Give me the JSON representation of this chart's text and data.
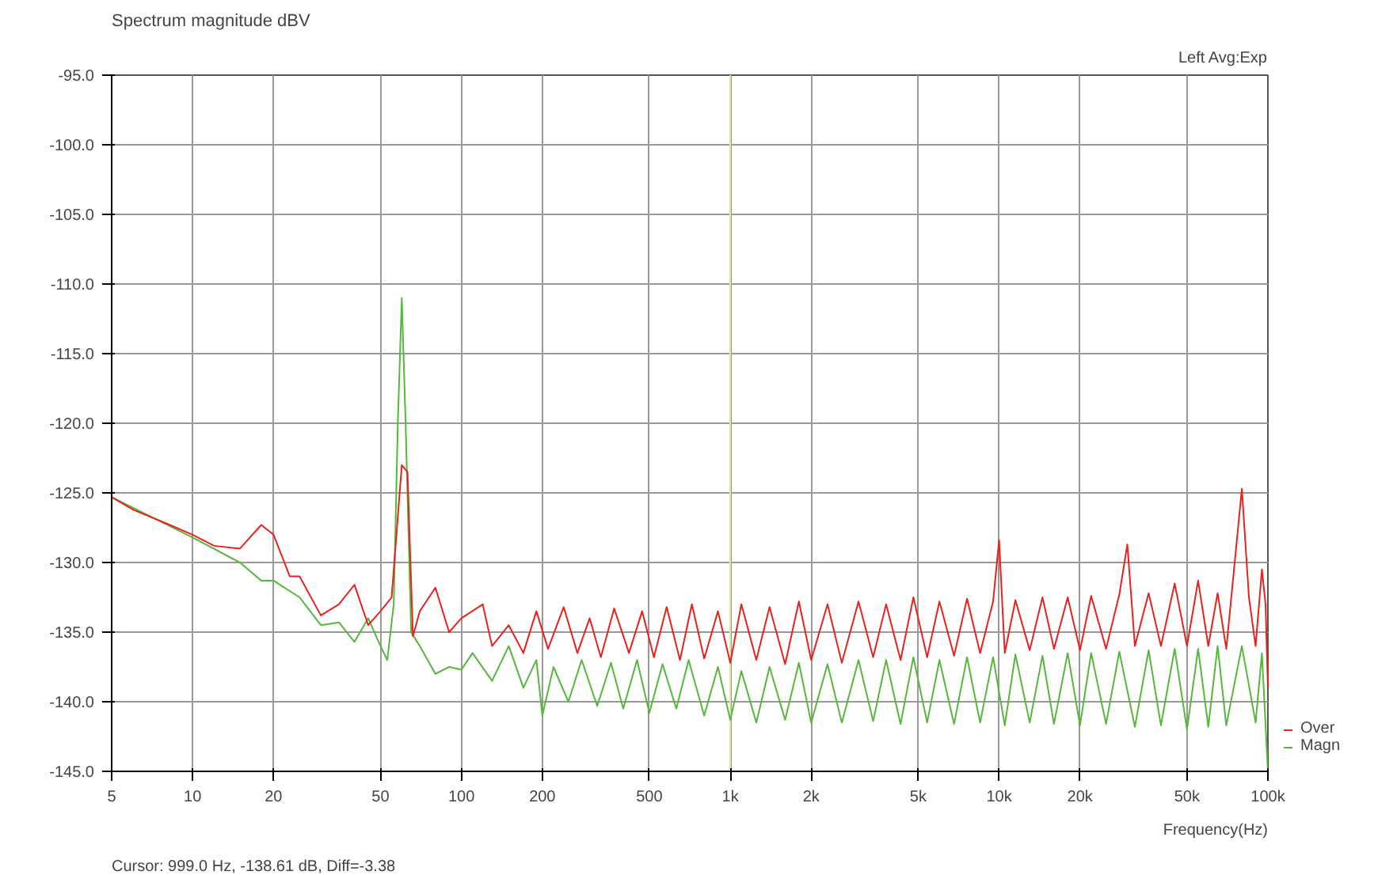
{
  "chart_data": {
    "type": "line",
    "title": "Spectrum magnitude dBV",
    "xlabel": "Frequency(Hz)",
    "annotations": [
      "Left Avg:Exp",
      "Cursor:  999.0 Hz, -138.61 dB,  Diff=-3.38"
    ],
    "log": "x",
    "grid": true,
    "legend": "bottom right",
    "xlim": [
      5,
      100000
    ],
    "ylim": [
      -145,
      -95
    ],
    "xticks": [
      5,
      10,
      20,
      50,
      100,
      200,
      500,
      {
        "value": 1000,
        "label": "1k"
      },
      {
        "value": 2000,
        "label": "2k"
      },
      {
        "value": 5000,
        "label": "5k"
      },
      {
        "value": 10000,
        "label": "10k"
      },
      {
        "value": 20000,
        "label": "20k"
      },
      {
        "value": 50000,
        "label": "50k"
      },
      {
        "value": 100000,
        "label": "100k"
      }
    ],
    "yticks": [
      {
        "value": -145,
        "label": "-145.0"
      },
      {
        "value": -140,
        "label": "-140.0"
      },
      {
        "value": -135,
        "label": "-135.0"
      },
      {
        "value": -130,
        "label": "-130.0"
      },
      {
        "value": -125,
        "label": "-125.0"
      },
      {
        "value": -120,
        "label": "-120.0"
      },
      {
        "value": -115,
        "label": "-115.0"
      },
      {
        "value": -110,
        "label": "-110.0"
      },
      {
        "value": -105,
        "label": "-105.0"
      },
      {
        "value": -100,
        "label": "-100.0"
      },
      {
        "value": -95,
        "label": "-95.0"
      }
    ],
    "ref_lines": [
      {
        "axis": "x",
        "value": 999,
        "label": null,
        "color": "#e6e89a"
      }
    ],
    "series": [
      {
        "name": "Magn",
        "color": "#55b83c",
        "x": [
          5,
          10,
          15,
          18,
          20,
          25,
          30,
          35,
          40,
          45,
          50,
          53,
          56,
          58,
          60,
          62,
          65,
          70,
          80,
          90,
          100,
          110,
          130,
          150,
          170,
          190,
          200,
          220,
          250,
          280,
          320,
          360,
          400,
          450,
          500,
          560,
          630,
          700,
          800,
          900,
          1000,
          1100,
          1250,
          1400,
          1600,
          1800,
          2000,
          2300,
          2600,
          3000,
          3400,
          3800,
          4300,
          4800,
          5400,
          6000,
          6800,
          7600,
          8500,
          9500,
          10500,
          11500,
          13000,
          14500,
          16000,
          18000,
          20000,
          22000,
          25000,
          28000,
          32000,
          36000,
          40000,
          45000,
          50000,
          55000,
          60000,
          65000,
          70000,
          80000,
          90000,
          95000,
          100000
        ],
        "values": [
          -125.3,
          -128.2,
          -130,
          -131.3,
          -131.3,
          -132.5,
          -134.5,
          -134.3,
          -135.7,
          -134,
          -136,
          -137,
          -133,
          -120,
          -111,
          -120,
          -135,
          -136,
          -138,
          -137.5,
          -137.7,
          -136.5,
          -138.5,
          -136,
          -139,
          -137,
          -141,
          -137.5,
          -140,
          -137,
          -140.3,
          -137.2,
          -140.5,
          -137,
          -140.8,
          -137.3,
          -140.5,
          -137,
          -141,
          -137.5,
          -141.3,
          -137.8,
          -141.5,
          -137.5,
          -141.3,
          -137.2,
          -141.5,
          -137.3,
          -141.5,
          -137,
          -141.4,
          -137,
          -141.6,
          -136.8,
          -141.5,
          -137,
          -141.6,
          -136.8,
          -141.5,
          -136.8,
          -141.7,
          -136.6,
          -141.5,
          -136.7,
          -141.6,
          -136.5,
          -141.7,
          -136.5,
          -141.6,
          -136.4,
          -141.8,
          -136.3,
          -141.7,
          -136.2,
          -142,
          -136.2,
          -141.8,
          -136,
          -141.7,
          -136,
          -141.5,
          -136.5,
          -145
        ]
      },
      {
        "name": "Over",
        "color": "#e8231e",
        "x": [
          5,
          6,
          8,
          10,
          12,
          15,
          18,
          20,
          23,
          25,
          30,
          35,
          40,
          45,
          50,
          55,
          60,
          63,
          66,
          70,
          80,
          90,
          100,
          120,
          130,
          150,
          170,
          190,
          210,
          240,
          270,
          300,
          330,
          370,
          420,
          470,
          520,
          580,
          650,
          720,
          800,
          900,
          1000,
          1100,
          1250,
          1400,
          1600,
          1800,
          2000,
          2300,
          2600,
          3000,
          3400,
          3800,
          4300,
          4800,
          5400,
          6000,
          6800,
          7600,
          8500,
          9500,
          10000,
          10500,
          11500,
          13000,
          14500,
          16000,
          18000,
          20000,
          22000,
          25000,
          28000,
          30000,
          32000,
          36000,
          40000,
          45000,
          50000,
          55000,
          60000,
          65000,
          70000,
          80000,
          85000,
          90000,
          95000,
          98000,
          100000
        ],
        "values": [
          -125.3,
          -126.2,
          -127.2,
          -128,
          -128.8,
          -129,
          -127.3,
          -128,
          -131,
          -131,
          -133.8,
          -133,
          -131.6,
          -134.5,
          -133.5,
          -132.5,
          -123,
          -123.5,
          -135.3,
          -133.5,
          -131.8,
          -135,
          -134,
          -133,
          -136,
          -134.5,
          -136.5,
          -133.5,
          -136.2,
          -133.2,
          -136.5,
          -134,
          -136.8,
          -133.3,
          -136.5,
          -133.5,
          -136.8,
          -133.2,
          -137,
          -133,
          -136.9,
          -133.5,
          -137.2,
          -133,
          -137,
          -133.2,
          -137.3,
          -132.8,
          -137,
          -133,
          -137.2,
          -132.8,
          -136.8,
          -133,
          -137,
          -132.5,
          -136.8,
          -132.8,
          -136.7,
          -132.6,
          -136.5,
          -132.8,
          -128.4,
          -136.5,
          -132.7,
          -136.3,
          -132.5,
          -136.2,
          -132.5,
          -136.3,
          -132.4,
          -136.2,
          -132.3,
          -128.7,
          -136,
          -132.2,
          -136,
          -131.5,
          -136,
          -131.3,
          -136,
          -132.2,
          -136.2,
          -124.7,
          -132.5,
          -136,
          -130.5,
          -133,
          -139
        ]
      }
    ]
  }
}
